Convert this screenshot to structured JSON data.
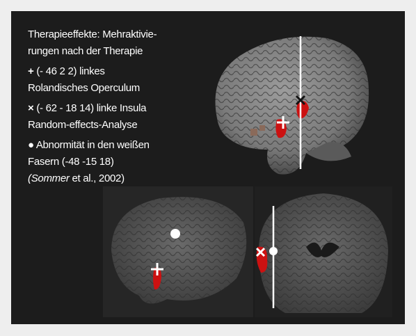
{
  "legend": {
    "title_lines": [
      "Therapieeffekte: Mehraktivie-",
      "rungen nach der Therapie"
    ],
    "items": [
      {
        "symbol": "+",
        "lines": [
          "(- 46 2 2) linkes",
          "Rolandisches Operculum"
        ]
      },
      {
        "symbol": "×",
        "lines": [
          "(- 62 - 18 14) linke Insula",
          "Random-effects-Analyse"
        ]
      },
      {
        "symbol": "●",
        "lines": [
          "Abnormität in den weißen",
          "Fasern (-48 -15 18)"
        ],
        "citation": {
          "author": "(Sommer",
          "rest": " et al., 2002)"
        }
      }
    ]
  }
}
